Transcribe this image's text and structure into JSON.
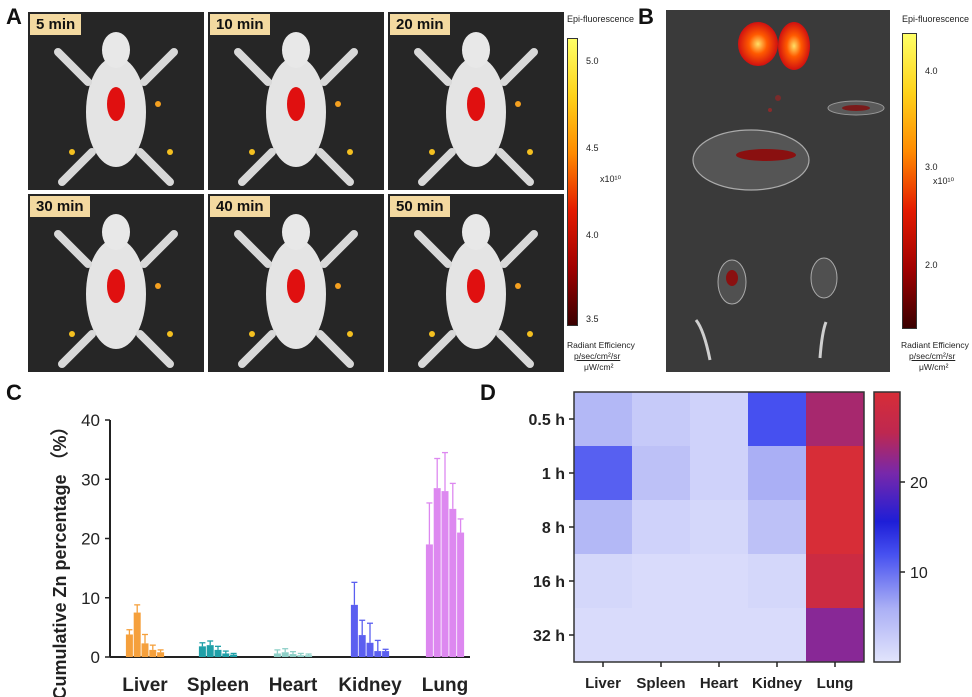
{
  "panel_a": {
    "letter": "A",
    "tiles": [
      "5 min",
      "10 min",
      "20 min",
      "30 min",
      "40 min",
      "50 min"
    ],
    "colorbar_title": "Epi-fluorescence",
    "colorbar_ticks": [
      "5.0",
      "4.5",
      "4.0",
      "3.5"
    ],
    "colorbar_scale": "x10¹⁰",
    "unit_title": "Radiant Efficiency",
    "unit_num": "p/sec/cm²/sr",
    "unit_den": "μW/cm²"
  },
  "panel_b": {
    "letter": "B",
    "colorbar_title": "Epi-fluorescence",
    "colorbar_ticks": [
      "4.0",
      "3.0",
      "2.0"
    ],
    "colorbar_scale": "x10¹⁰",
    "unit_title": "Radiant Efficiency",
    "unit_num": "p/sec/cm²/sr",
    "unit_den": "μW/cm²"
  },
  "chart_data": [
    {
      "letter": "C",
      "type": "bar",
      "ylabel": "Cumulative Zn percentage （%）",
      "ylim": [
        0,
        40
      ],
      "yticks": [
        "0",
        "10",
        "20",
        "30",
        "40"
      ],
      "categories": [
        "Liver",
        "Spleen",
        "Heart",
        "Kidney",
        "Lung"
      ],
      "colors": [
        "#f5a03c",
        "#1fa0a8",
        "#8fd0c8",
        "#5b5ff0",
        "#dd88f0"
      ],
      "values": [
        [
          3.8,
          7.5,
          2.3,
          1.2,
          0.8
        ],
        [
          1.8,
          2.0,
          1.2,
          0.6,
          0.4
        ],
        [
          0.6,
          0.8,
          0.5,
          0.3,
          0.3
        ],
        [
          8.8,
          3.7,
          2.4,
          1.0,
          1.0
        ],
        [
          19.0,
          28.5,
          28.0,
          25.0,
          21.0
        ]
      ],
      "errors": [
        [
          0.8,
          1.3,
          1.5,
          0.8,
          0.4
        ],
        [
          0.6,
          0.7,
          0.6,
          0.4,
          0.2
        ],
        [
          0.6,
          0.6,
          0.4,
          0.3,
          0.2
        ],
        [
          3.8,
          2.5,
          3.3,
          1.8,
          0.3
        ],
        [
          7.0,
          5.0,
          6.5,
          4.3,
          2.3
        ]
      ]
    },
    {
      "letter": "D",
      "type": "heatmap",
      "x": [
        "Liver",
        "Spleen",
        "Heart",
        "Kidney",
        "Lung"
      ],
      "y": [
        "0.5 h",
        "1 h",
        "8 h",
        "16 h",
        "32 h"
      ],
      "values": [
        [
          5,
          3,
          2,
          12,
          24
        ],
        [
          11,
          4,
          2,
          6,
          30
        ],
        [
          5,
          2,
          1.5,
          4,
          30
        ],
        [
          1.5,
          1,
          1,
          1.5,
          28
        ],
        [
          1,
          1,
          1,
          1,
          22
        ]
      ],
      "colorbar_ticks": [
        10,
        20
      ],
      "vmin": 0,
      "vmax": 30
    }
  ]
}
